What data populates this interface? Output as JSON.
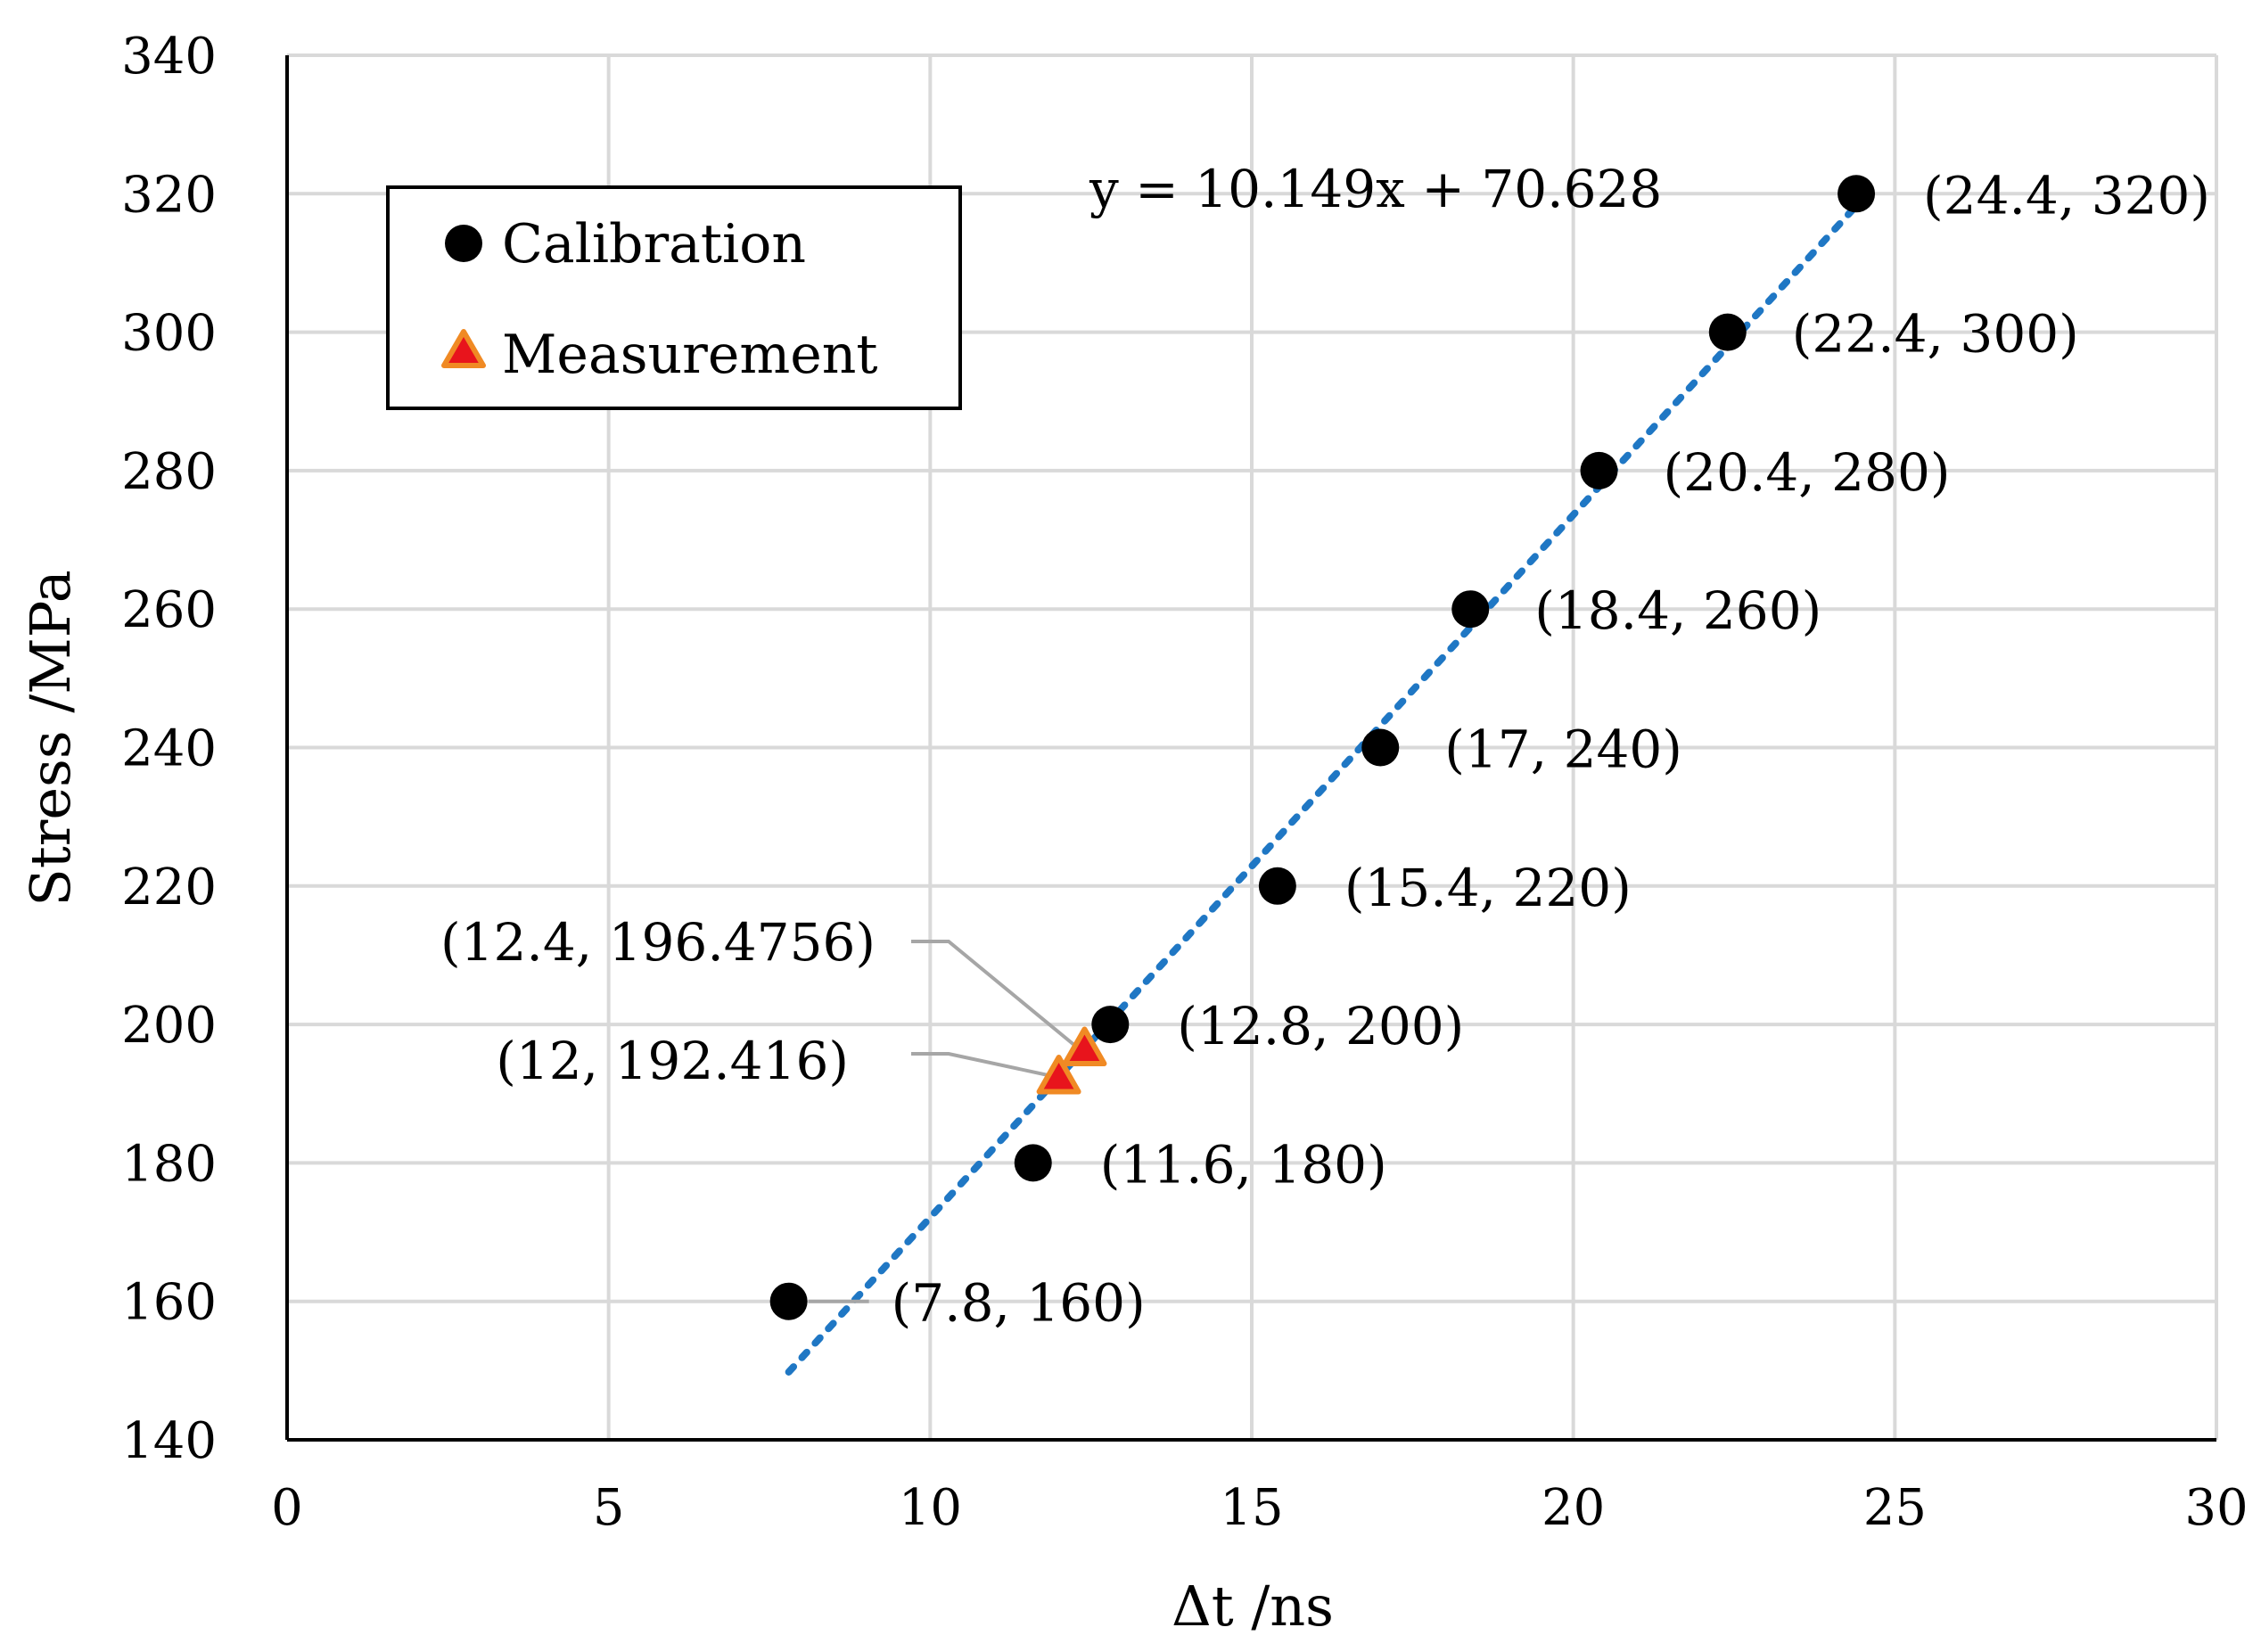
{
  "chart_data": {
    "type": "scatter",
    "xlabel": "Δt /ns",
    "ylabel": "Stress /MPa",
    "xlim": [
      0,
      30
    ],
    "ylim": [
      140,
      340
    ],
    "x_ticks": [
      0,
      5,
      10,
      15,
      20,
      25,
      30
    ],
    "y_ticks": [
      140,
      160,
      180,
      200,
      220,
      240,
      260,
      280,
      300,
      320,
      340
    ],
    "grid": true,
    "legend": {
      "position": "top-left",
      "entries": [
        {
          "name": "Calibration",
          "marker": "circle"
        },
        {
          "name": "Measurement",
          "marker": "triangle"
        }
      ]
    },
    "series": [
      {
        "name": "Calibration",
        "marker": "circle",
        "color": "#000000",
        "points": [
          {
            "x": 7.8,
            "y": 160,
            "label": "(7.8, 160)"
          },
          {
            "x": 11.6,
            "y": 180,
            "label": "(11.6, 180)"
          },
          {
            "x": 12.8,
            "y": 200,
            "label": "(12.8, 200)"
          },
          {
            "x": 15.4,
            "y": 220,
            "label": "(15.4, 220)"
          },
          {
            "x": 17,
            "y": 240,
            "label": "(17, 240)"
          },
          {
            "x": 18.4,
            "y": 260,
            "label": "(18.4, 260)"
          },
          {
            "x": 20.4,
            "y": 280,
            "label": "(20.4, 280)"
          },
          {
            "x": 22.4,
            "y": 300,
            "label": "(22.4, 300)"
          },
          {
            "x": 24.4,
            "y": 320,
            "label": "(24.4, 320)"
          }
        ]
      },
      {
        "name": "Measurement",
        "marker": "triangle",
        "color": "#e8141c",
        "edge_color": "#f08a24",
        "points": [
          {
            "x": 12,
            "y": 192.416,
            "label": "(12, 192.416)"
          },
          {
            "x": 12.4,
            "y": 196.4756,
            "label": "(12.4, 196.4756)"
          }
        ]
      }
    ],
    "trendline": {
      "type": "linear",
      "slope": 10.149,
      "intercept": 70.628,
      "x_range": [
        7.8,
        24.4
      ],
      "style": "dotted",
      "color": "#1f77c4",
      "equation": "y = 10.149x + 70.628"
    }
  }
}
